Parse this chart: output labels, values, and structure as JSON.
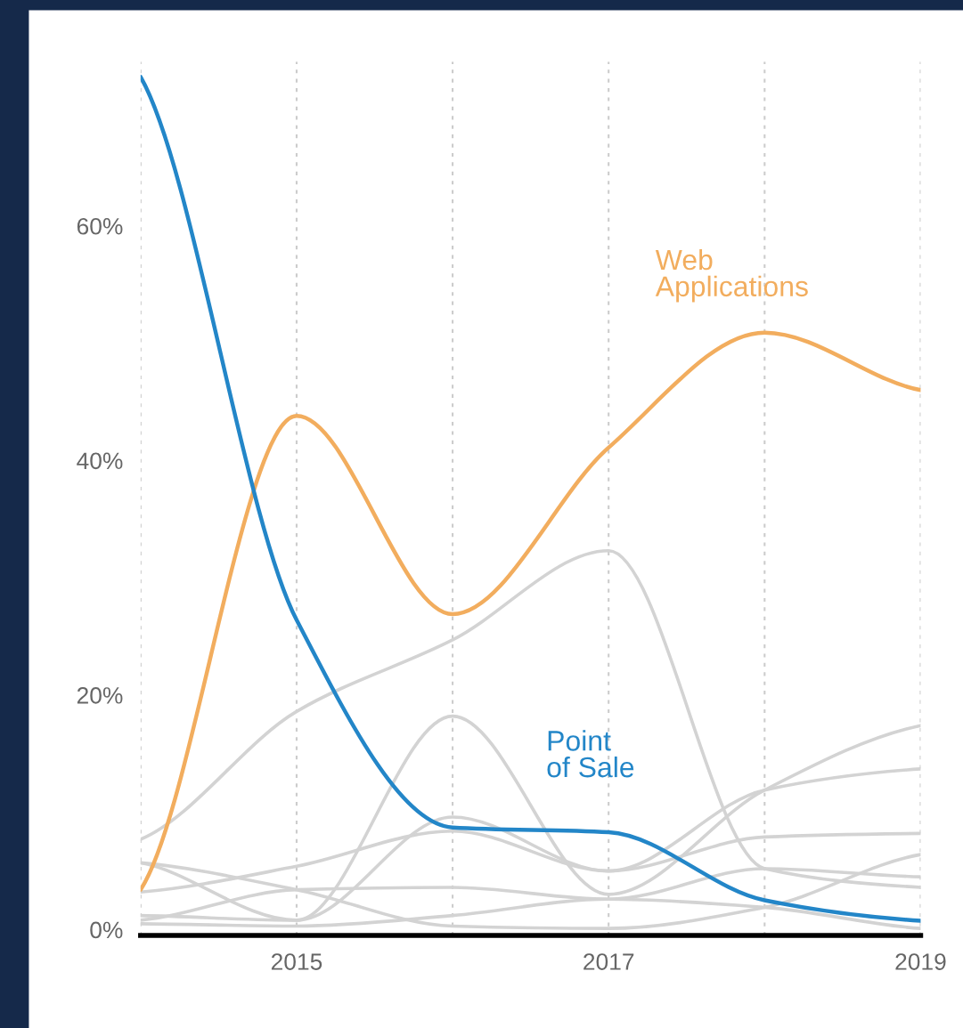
{
  "chart_data": {
    "type": "line",
    "x": [
      2014,
      2015,
      2016,
      2017,
      2018,
      2019
    ],
    "series": [
      {
        "color": "#d3d3d3",
        "values": [
          7.7,
          18.6,
          24.7,
          32.3,
          5.2,
          3.6
        ]
      },
      {
        "color": "#d3d3d3",
        "values": [
          1.2,
          0.8,
          18.2,
          3.0,
          11.9,
          17.4
        ]
      },
      {
        "color": "#d3d3d3",
        "values": [
          5.7,
          0.8,
          9.6,
          5.0,
          11.9,
          13.7
        ]
      },
      {
        "color": "#d3d3d3",
        "values": [
          3.2,
          5.4,
          8.4,
          5.0,
          7.9,
          8.2
        ]
      },
      {
        "color": "#d3d3d3",
        "values": [
          0.8,
          3.4,
          3.6,
          2.6,
          5.2,
          4.5
        ]
      },
      {
        "color": "#d3d3d3",
        "values": [
          0.5,
          0.3,
          1.2,
          2.6,
          1.9,
          0.1
        ]
      },
      {
        "color": "#d3d3d3",
        "values": [
          5.7,
          3.4,
          0.3,
          0.1,
          1.9,
          6.4
        ]
      },
      {
        "name": "Web Applications",
        "color": "#f2ad5e",
        "values": [
          3.4,
          43.8,
          26.9,
          41.1,
          50.9,
          46.0
        ]
      },
      {
        "name": "Point of Sale",
        "color": "#2386c8",
        "values": [
          72.7,
          26.4,
          8.7,
          8.3,
          2.5,
          0.75
        ]
      }
    ],
    "xlim": [
      2014,
      2019
    ],
    "xticks": [
      {
        "value": 2014,
        "label": null
      },
      2015,
      {
        "value": 2016,
        "label": null
      },
      2017,
      {
        "value": 2018,
        "label": null
      },
      2019
    ],
    "ylim": [
      -0.5,
      74
    ],
    "yticks": [
      {
        "value": 0,
        "label": "0%"
      },
      {
        "value": 20,
        "label": "20%"
      },
      {
        "value": 40,
        "label": "40%"
      },
      {
        "value": 60,
        "label": "60%"
      }
    ],
    "grid": "x",
    "legend": false,
    "marker": "none",
    "line_style": "solid"
  }
}
